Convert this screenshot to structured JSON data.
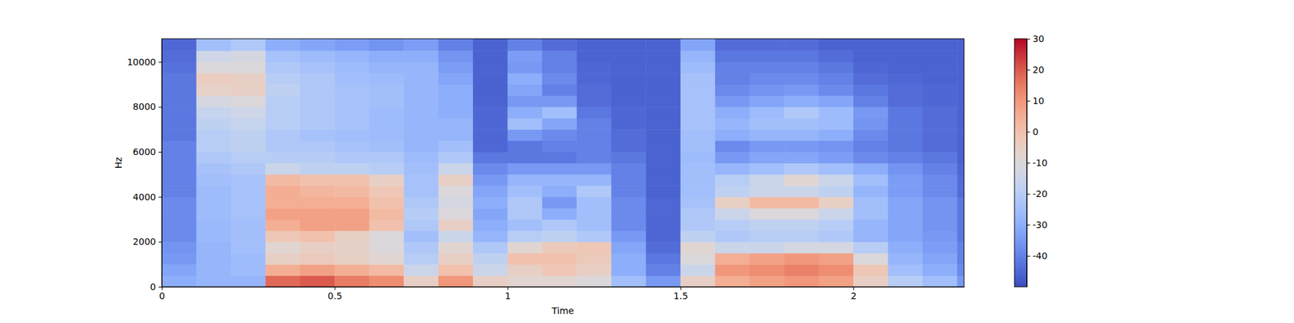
{
  "chart_data": {
    "type": "heatmap",
    "xlabel": "Time",
    "ylabel": "Hz",
    "x": [
      0,
      0.1,
      0.2,
      0.3,
      0.4,
      0.5,
      0.6,
      0.7,
      0.8,
      0.9,
      1.0,
      1.1,
      1.2,
      1.3,
      1.4,
      1.5,
      1.6,
      1.7,
      1.8,
      1.9,
      2.0,
      2.1,
      2.2,
      2.3
    ],
    "y": [
      0,
      500,
      1000,
      1500,
      2000,
      2500,
      3000,
      3500,
      4000,
      4500,
      5000,
      5500,
      6000,
      6500,
      7000,
      7500,
      8000,
      8500,
      9000,
      9500,
      10000,
      10500
    ],
    "xlim": [
      0,
      2.32
    ],
    "ylim": [
      0,
      11025
    ],
    "xticks": [
      0,
      0.5,
      1,
      1.5,
      2
    ],
    "yticks": [
      0,
      2000,
      4000,
      6000,
      8000,
      10000
    ],
    "zlim": [
      -50,
      30
    ],
    "zticks": [
      -40,
      -30,
      -20,
      -10,
      0,
      10,
      20,
      30
    ],
    "z": [
      [
        -30,
        -28,
        -28,
        18,
        20,
        15,
        12,
        -5,
        10,
        -5,
        -8,
        -8,
        -10,
        -25,
        -35,
        -5,
        5,
        8,
        10,
        8,
        -5,
        -20,
        -25,
        -35
      ],
      [
        -32,
        -28,
        -26,
        5,
        8,
        5,
        2,
        -15,
        0,
        -15,
        -5,
        -2,
        -5,
        -30,
        -40,
        -15,
        10,
        12,
        14,
        12,
        -2,
        -25,
        -30,
        -38
      ],
      [
        -35,
        -28,
        -26,
        -5,
        -3,
        -5,
        -8,
        -20,
        -5,
        -18,
        0,
        0,
        -3,
        -30,
        -42,
        -10,
        5,
        8,
        10,
        8,
        -10,
        -28,
        -32,
        -40
      ],
      [
        -36,
        -28,
        -25,
        -8,
        -5,
        -6,
        -10,
        -22,
        -8,
        -22,
        -8,
        -3,
        -2,
        -32,
        -44,
        -8,
        -15,
        -15,
        -12,
        -12,
        -20,
        -30,
        -34,
        -40
      ],
      [
        -38,
        -27,
        -25,
        -2,
        0,
        -5,
        -10,
        -25,
        -15,
        -28,
        -20,
        -18,
        -22,
        -35,
        -45,
        -18,
        -22,
        -20,
        -20,
        -22,
        -28,
        -32,
        -35,
        -42
      ],
      [
        -38,
        -27,
        -25,
        5,
        8,
        8,
        0,
        -22,
        -5,
        -30,
        -25,
        -22,
        -25,
        -38,
        -45,
        -22,
        -20,
        -18,
        -18,
        -20,
        -28,
        -32,
        -36,
        -42
      ],
      [
        -38,
        -26,
        -24,
        8,
        8,
        8,
        2,
        -20,
        -10,
        -32,
        -22,
        -30,
        -25,
        -38,
        -45,
        -22,
        -15,
        -10,
        -10,
        -15,
        -25,
        -32,
        -36,
        -42
      ],
      [
        -38,
        -26,
        -24,
        5,
        5,
        5,
        0,
        -22,
        -12,
        -30,
        -22,
        -35,
        -25,
        -38,
        -45,
        -24,
        -5,
        2,
        2,
        -5,
        -25,
        -32,
        -36,
        -42
      ],
      [
        -40,
        -26,
        -24,
        5,
        3,
        2,
        -2,
        -24,
        -10,
        -32,
        -25,
        -30,
        -22,
        -40,
        -46,
        -25,
        -18,
        -15,
        -15,
        -18,
        -28,
        -34,
        -38,
        -44
      ],
      [
        -40,
        -25,
        -24,
        2,
        0,
        0,
        -5,
        -24,
        -5,
        -35,
        -28,
        -28,
        -28,
        -40,
        -46,
        -25,
        -20,
        -15,
        -8,
        -15,
        -25,
        -34,
        -38,
        -44
      ],
      [
        -40,
        -24,
        -22,
        -15,
        -18,
        -18,
        -20,
        -25,
        -15,
        -38,
        -35,
        -35,
        -35,
        -40,
        -46,
        -25,
        -28,
        -25,
        -22,
        -25,
        -30,
        -36,
        -40,
        -45
      ],
      [
        -40,
        -22,
        -20,
        -20,
        -20,
        -22,
        -22,
        -26,
        -22,
        -42,
        -42,
        -42,
        -40,
        -42,
        -46,
        -26,
        -35,
        -32,
        -32,
        -34,
        -38,
        -40,
        -42,
        -46
      ],
      [
        -40,
        -20,
        -18,
        -22,
        -22,
        -24,
        -25,
        -28,
        -25,
        -45,
        -42,
        -40,
        -40,
        -44,
        -46,
        -25,
        -38,
        -35,
        -35,
        -36,
        -40,
        -42,
        -44,
        -46
      ],
      [
        -42,
        -20,
        -18,
        -22,
        -24,
        -25,
        -26,
        -28,
        -28,
        -45,
        -35,
        -38,
        -40,
        -44,
        -46,
        -25,
        -30,
        -28,
        -28,
        -30,
        -38,
        -42,
        -44,
        -46
      ],
      [
        -42,
        -18,
        -16,
        -20,
        -22,
        -24,
        -26,
        -28,
        -28,
        -45,
        -25,
        -32,
        -40,
        -45,
        -46,
        -24,
        -28,
        -25,
        -25,
        -26,
        -36,
        -42,
        -44,
        -46
      ],
      [
        -42,
        -16,
        -14,
        -20,
        -22,
        -24,
        -26,
        -28,
        -30,
        -45,
        -30,
        -25,
        -42,
        -45,
        -46,
        -24,
        -30,
        -26,
        -22,
        -26,
        -35,
        -42,
        -44,
        -46
      ],
      [
        -42,
        -12,
        -10,
        -20,
        -22,
        -24,
        -25,
        -28,
        -30,
        -46,
        -35,
        -35,
        -44,
        -46,
        -46,
        -24,
        -35,
        -32,
        -30,
        -32,
        -40,
        -44,
        -45,
        -46
      ],
      [
        -42,
        -6,
        -5,
        -18,
        -22,
        -24,
        -25,
        -28,
        -30,
        -46,
        -32,
        -40,
        -44,
        -46,
        -46,
        -24,
        -38,
        -36,
        -35,
        -38,
        -42,
        -44,
        -45,
        -46
      ],
      [
        -42,
        -4,
        -5,
        -20,
        -22,
        -25,
        -26,
        -28,
        -32,
        -46,
        -30,
        -38,
        -45,
        -46,
        -46,
        -24,
        -40,
        -38,
        -38,
        -40,
        -44,
        -45,
        -46,
        -46
      ],
      [
        -43,
        -10,
        -10,
        -22,
        -24,
        -26,
        -28,
        -28,
        -34,
        -46,
        -35,
        -40,
        -45,
        -46,
        -46,
        -26,
        -40,
        -40,
        -40,
        -42,
        -45,
        -46,
        -46,
        -46
      ],
      [
        -44,
        -14,
        -12,
        -24,
        -26,
        -28,
        -30,
        -30,
        -36,
        -46,
        -34,
        -40,
        -46,
        -46,
        -46,
        -28,
        -42,
        -42,
        -42,
        -44,
        -46,
        -46,
        -46,
        -46
      ],
      [
        -45,
        -25,
        -22,
        -30,
        -32,
        -34,
        -36,
        -34,
        -40,
        -46,
        -40,
        -44,
        -46,
        -46,
        -46,
        -32,
        -44,
        -44,
        -44,
        -46,
        -46,
        -46,
        -46,
        -46
      ]
    ]
  }
}
